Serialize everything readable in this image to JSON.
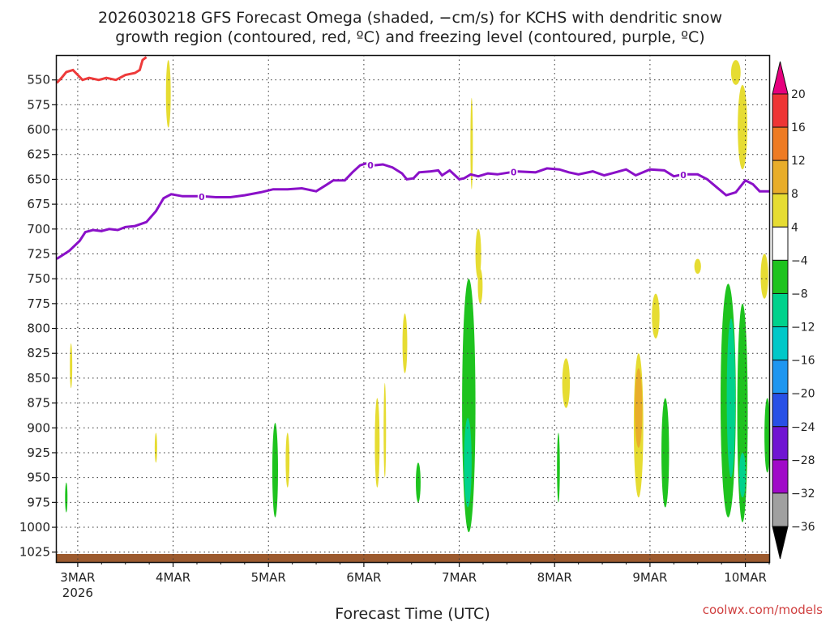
{
  "chart_data": {
    "type": "heatmap",
    "title_line1": "2026030218 GFS Forecast Omega (shaded, −cm/s) for KCHS with dendritic snow",
    "title_line2": "growth region (contoured, red, ºC) and freezing level (contoured, purple, ºC)",
    "xlabel": "Forecast Time (UTC)",
    "credit": "coolwx.com/models",
    "x_ticks": [
      {
        "t": 0,
        "label": "3MAR",
        "sub": "2026"
      },
      {
        "t": 1,
        "label": "4MAR",
        "sub": ""
      },
      {
        "t": 2,
        "label": "5MAR",
        "sub": ""
      },
      {
        "t": 3,
        "label": "6MAR",
        "sub": ""
      },
      {
        "t": 4,
        "label": "7MAR",
        "sub": ""
      },
      {
        "t": 5,
        "label": "8MAR",
        "sub": ""
      },
      {
        "t": 6,
        "label": "9MAR",
        "sub": ""
      },
      {
        "t": 7,
        "label": "10MAR",
        "sub": ""
      }
    ],
    "x_range_days": [
      -0.22,
      7.25
    ],
    "y_range_hpa": [
      1035,
      525
    ],
    "y_ticks": [
      550,
      575,
      600,
      625,
      650,
      675,
      700,
      725,
      750,
      775,
      800,
      825,
      850,
      875,
      900,
      925,
      950,
      975,
      1000,
      1025
    ],
    "colorbar": {
      "labels": [
        "20",
        "16",
        "12",
        "8",
        "4",
        "−4",
        "−8",
        "−12",
        "−16",
        "−20",
        "−24",
        "−28",
        "−32",
        "−36"
      ],
      "colors": [
        "#e6007e",
        "#ee3535",
        "#ee7b23",
        "#e8ad2a",
        "#e6dc32",
        "#ffffff",
        "#1ec31e",
        "#00d28c",
        "#00c8c8",
        "#1e96f0",
        "#2850e6",
        "#7014d2",
        "#a00ac8",
        "#a0a0a0",
        "#000000"
      ]
    },
    "freezing_level_label": "0",
    "freezing_level_label_days": [
      1.3,
      3.07,
      4.57,
      6.35
    ],
    "freezing_level": [
      [
        -0.22,
        730
      ],
      [
        -0.17,
        727
      ],
      [
        -0.09,
        722
      ],
      [
        0.02,
        712
      ],
      [
        0.08,
        703
      ],
      [
        0.16,
        701
      ],
      [
        0.25,
        702
      ],
      [
        0.33,
        700
      ],
      [
        0.42,
        701
      ],
      [
        0.5,
        698
      ],
      [
        0.6,
        697
      ],
      [
        0.72,
        693
      ],
      [
        0.82,
        682
      ],
      [
        0.9,
        669
      ],
      [
        0.98,
        665
      ],
      [
        1.1,
        667
      ],
      [
        1.2,
        667
      ],
      [
        1.3,
        667
      ],
      [
        1.45,
        668
      ],
      [
        1.6,
        668
      ],
      [
        1.75,
        666
      ],
      [
        1.92,
        663
      ],
      [
        2.05,
        660
      ],
      [
        2.2,
        660
      ],
      [
        2.35,
        659
      ],
      [
        2.5,
        662
      ],
      [
        2.6,
        656
      ],
      [
        2.68,
        651
      ],
      [
        2.8,
        651
      ],
      [
        2.88,
        643
      ],
      [
        2.96,
        636
      ],
      [
        3.02,
        634
      ],
      [
        3.1,
        636
      ],
      [
        3.2,
        635
      ],
      [
        3.3,
        638
      ],
      [
        3.4,
        644
      ],
      [
        3.45,
        650
      ],
      [
        3.52,
        649
      ],
      [
        3.58,
        643
      ],
      [
        3.7,
        642
      ],
      [
        3.78,
        641
      ],
      [
        3.82,
        646
      ],
      [
        3.9,
        641
      ],
      [
        4.0,
        650
      ],
      [
        4.05,
        649
      ],
      [
        4.12,
        645
      ],
      [
        4.2,
        647
      ],
      [
        4.3,
        644
      ],
      [
        4.4,
        645
      ],
      [
        4.6,
        642
      ],
      [
        4.8,
        643
      ],
      [
        4.92,
        639
      ],
      [
        5.05,
        640
      ],
      [
        5.15,
        643
      ],
      [
        5.25,
        645
      ],
      [
        5.4,
        642
      ],
      [
        5.52,
        646
      ],
      [
        5.6,
        644
      ],
      [
        5.75,
        640
      ],
      [
        5.85,
        646
      ],
      [
        6.0,
        640
      ],
      [
        6.15,
        641
      ],
      [
        6.25,
        647
      ],
      [
        6.35,
        645
      ],
      [
        6.5,
        645
      ],
      [
        6.6,
        650
      ],
      [
        6.7,
        658
      ],
      [
        6.8,
        666
      ],
      [
        6.9,
        663
      ],
      [
        7.0,
        651
      ],
      [
        7.08,
        655
      ],
      [
        7.15,
        662
      ],
      [
        7.25,
        662
      ]
    ],
    "dgz_minus12_contour": [
      [
        -0.22,
        553
      ],
      [
        -0.17,
        548
      ],
      [
        -0.12,
        542
      ],
      [
        -0.05,
        540
      ],
      [
        0.0,
        545
      ],
      [
        0.05,
        550
      ],
      [
        0.12,
        548
      ],
      [
        0.22,
        550
      ],
      [
        0.3,
        548
      ],
      [
        0.4,
        550
      ],
      [
        0.5,
        545
      ],
      [
        0.6,
        543
      ],
      [
        0.65,
        540
      ],
      [
        0.68,
        530
      ],
      [
        0.72,
        527
      ]
    ],
    "omega_regions": [
      {
        "cx": 0.95,
        "top": 530,
        "bottom": 598,
        "w": 0.05,
        "v": 4
      },
      {
        "cx": -0.07,
        "top": 815,
        "bottom": 860,
        "w": 0.01,
        "v": 4
      },
      {
        "cx": -0.12,
        "top": 955,
        "bottom": 985,
        "w": 0.02,
        "v": -4
      },
      {
        "cx": 0.82,
        "top": 905,
        "bottom": 935,
        "w": 0.01,
        "v": 4
      },
      {
        "cx": 2.07,
        "top": 895,
        "bottom": 990,
        "w": 0.06,
        "v": -4
      },
      {
        "cx": 2.2,
        "top": 905,
        "bottom": 960,
        "w": 0.04,
        "v": 4
      },
      {
        "cx": 3.14,
        "top": 870,
        "bottom": 960,
        "w": 0.05,
        "v": 4
      },
      {
        "cx": 3.22,
        "top": 855,
        "bottom": 950,
        "w": 0.01,
        "v": 4
      },
      {
        "cx": 3.43,
        "top": 785,
        "bottom": 845,
        "w": 0.05,
        "v": 4
      },
      {
        "cx": 3.57,
        "top": 935,
        "bottom": 975,
        "w": 0.05,
        "v": -4
      },
      {
        "cx": 4.13,
        "top": 568,
        "bottom": 660,
        "w": 0.02,
        "v": 4
      },
      {
        "cx": 4.2,
        "top": 700,
        "bottom": 750,
        "w": 0.06,
        "v": 4
      },
      {
        "cx": 4.22,
        "top": 740,
        "bottom": 775,
        "w": 0.05,
        "v": 4
      },
      {
        "cx": 4.1,
        "top": 750,
        "bottom": 1005,
        "w": 0.14,
        "v": -4
      },
      {
        "cx": 4.09,
        "top": 890,
        "bottom": 980,
        "w": 0.08,
        "v": -8
      },
      {
        "cx": 5.04,
        "top": 905,
        "bottom": 975,
        "w": 0.03,
        "v": -4
      },
      {
        "cx": 5.12,
        "top": 830,
        "bottom": 880,
        "w": 0.08,
        "v": 4
      },
      {
        "cx": 5.88,
        "top": 825,
        "bottom": 970,
        "w": 0.1,
        "v": 4
      },
      {
        "cx": 5.88,
        "top": 840,
        "bottom": 920,
        "w": 0.08,
        "v": 8
      },
      {
        "cx": 6.06,
        "top": 765,
        "bottom": 810,
        "w": 0.08,
        "v": 4
      },
      {
        "cx": 6.16,
        "top": 870,
        "bottom": 980,
        "w": 0.08,
        "v": -4
      },
      {
        "cx": 6.5,
        "top": 730,
        "bottom": 745,
        "w": 0.07,
        "v": 4
      },
      {
        "cx": 6.9,
        "top": 530,
        "bottom": 555,
        "w": 0.1,
        "v": 4
      },
      {
        "cx": 6.97,
        "top": 555,
        "bottom": 640,
        "w": 0.1,
        "v": 4
      },
      {
        "cx": 6.82,
        "top": 755,
        "bottom": 990,
        "w": 0.16,
        "v": -4
      },
      {
        "cx": 6.85,
        "top": 790,
        "bottom": 950,
        "w": 0.09,
        "v": -8
      },
      {
        "cx": 6.97,
        "top": 775,
        "bottom": 995,
        "w": 0.11,
        "v": -4
      },
      {
        "cx": 6.97,
        "top": 925,
        "bottom": 970,
        "w": 0.07,
        "v": -8
      },
      {
        "cx": 7.2,
        "top": 725,
        "bottom": 770,
        "w": 0.08,
        "v": 4
      },
      {
        "cx": 7.23,
        "top": 870,
        "bottom": 945,
        "w": 0.06,
        "v": -4
      }
    ]
  }
}
